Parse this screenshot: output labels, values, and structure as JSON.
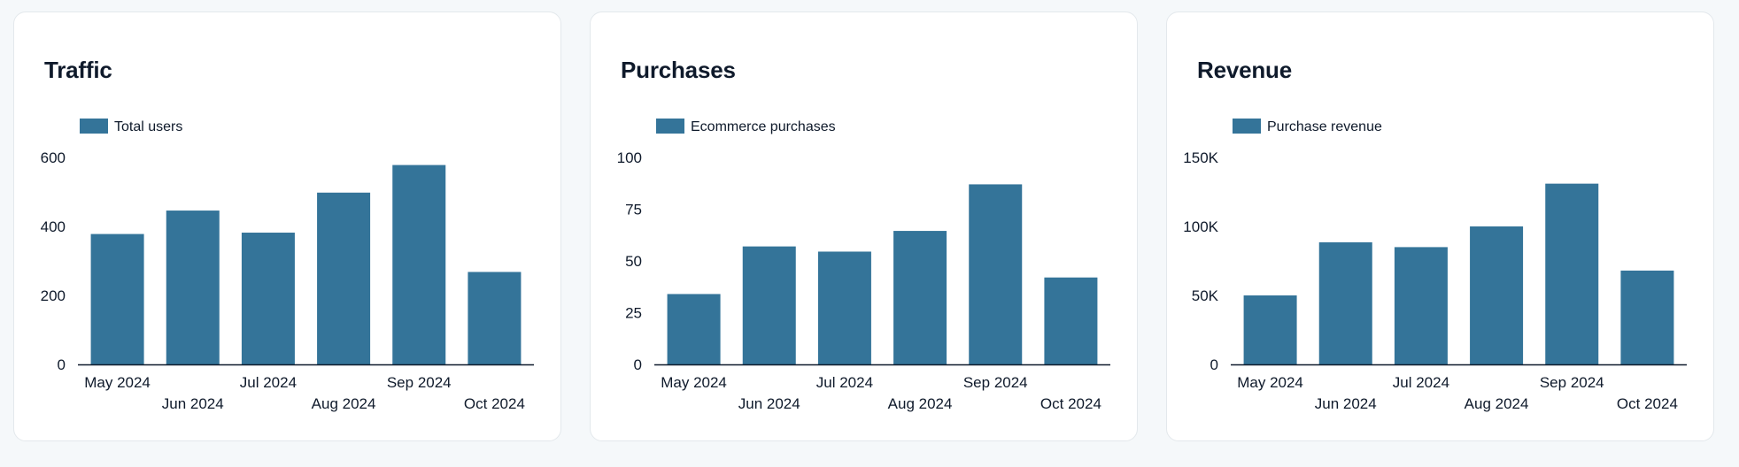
{
  "colors": {
    "bar": "#347499",
    "axis": "#0f1a2b",
    "text": "#0f1a2b",
    "card": "#ffffff",
    "background": "#f5f8fa"
  },
  "cards": [
    {
      "title": "Traffic"
    },
    {
      "title": "Purchases"
    },
    {
      "title": "Revenue"
    }
  ],
  "chart_data": [
    {
      "type": "bar",
      "title": "Traffic",
      "legend": "Total users",
      "categories": [
        "May 2024",
        "Jun 2024",
        "Jul 2024",
        "Aug 2024",
        "Sep 2024",
        "Oct 2024"
      ],
      "values": [
        378,
        446,
        382,
        498,
        578,
        268
      ],
      "ylim": [
        0,
        600
      ],
      "yticks": [
        0,
        200,
        400,
        600
      ],
      "ytick_labels": [
        "0",
        "200",
        "400",
        "600"
      ]
    },
    {
      "type": "bar",
      "title": "Purchases",
      "legend": "Ecommerce purchases",
      "categories": [
        "May 2024",
        "Jun 2024",
        "Jul 2024",
        "Aug 2024",
        "Sep 2024",
        "Oct 2024"
      ],
      "values": [
        34,
        57,
        54.5,
        64.5,
        87,
        42
      ],
      "ylim": [
        0,
        100
      ],
      "yticks": [
        0,
        25,
        50,
        75,
        100
      ],
      "ytick_labels": [
        "0",
        "25",
        "50",
        "75",
        "100"
      ]
    },
    {
      "type": "bar",
      "title": "Revenue",
      "legend": "Purchase revenue",
      "categories": [
        "May 2024",
        "Jun 2024",
        "Jul 2024",
        "Aug 2024",
        "Sep 2024",
        "Oct 2024"
      ],
      "values": [
        50000,
        88500,
        85000,
        100000,
        131000,
        68000
      ],
      "ylim": [
        0,
        150000
      ],
      "yticks": [
        0,
        50000,
        100000,
        150000
      ],
      "ytick_labels": [
        "0",
        "50K",
        "100K",
        "150K"
      ]
    }
  ]
}
